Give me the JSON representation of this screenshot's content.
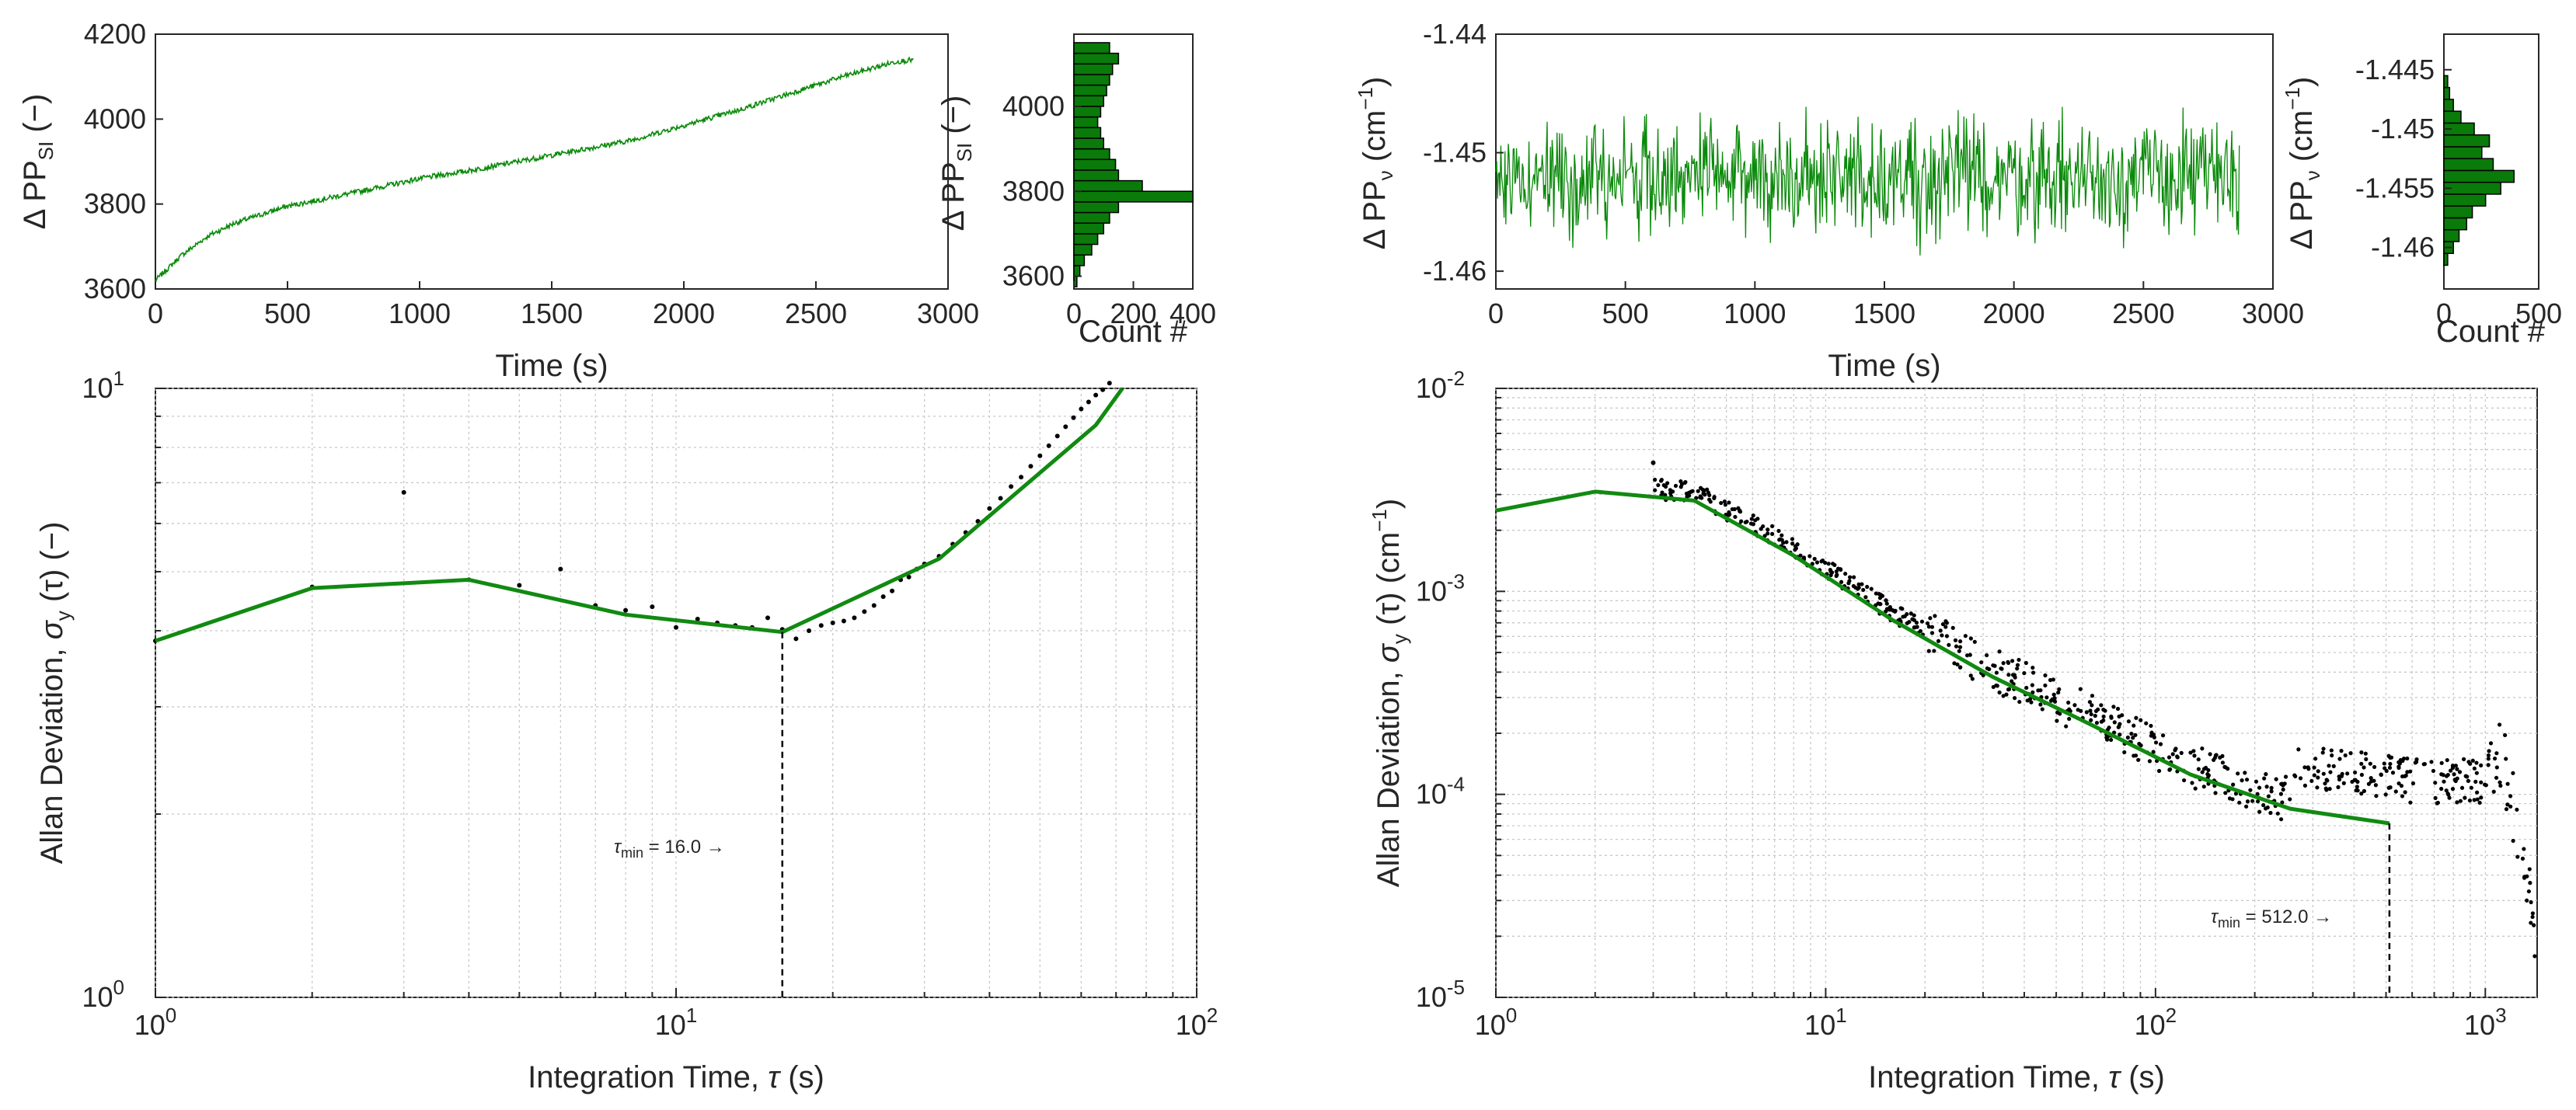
{
  "colors": {
    "series": "#0a8a0a",
    "histogram": "#0a7a0a",
    "avar_line": "#118a11",
    "points": "#000000",
    "grid": "#c8c8c8",
    "axis": "#262626"
  },
  "panels": {
    "ts_si": {
      "xlabel": "Time (s)",
      "ylabel_prefix": "Δ PP",
      "ylabel_sub": "SI",
      "ylabel_suffix": " (−)"
    },
    "hist_si": {
      "xlabel": "Count #",
      "ylabel_prefix": "Δ PP",
      "ylabel_sub": "SI",
      "ylabel_suffix": " (−)"
    },
    "ts_nu": {
      "xlabel": "Time (s)",
      "ylabel_prefix": "Δ PP",
      "ylabel_sub": "ν",
      "ylabel_suffix": " (cm",
      "ylabel_sup": "−1",
      "ylabel_close": ")"
    },
    "hist_nu": {
      "xlabel": "Count #",
      "ylabel_prefix": "Δ PP",
      "ylabel_sub": "ν",
      "ylabel_suffix": " (cm",
      "ylabel_sup": "−1",
      "ylabel_close": ")"
    },
    "adev_si": {
      "xlabel_main": "Integration Time, ",
      "xlabel_sym": "τ",
      "xlabel_unit": " (s)",
      "ylabel_main": "Allan Deviation, ",
      "ylabel_sym": "σ",
      "ylabel_sub": "y",
      "ylabel_tau": " (τ)",
      "ylabel_unit": " (−)",
      "annotation_sym": "τ",
      "annotation_sub": "min",
      "annotation_text": " = 16.0 →"
    },
    "adev_nu": {
      "xlabel_main": "Integration Time, ",
      "xlabel_sym": "τ",
      "xlabel_unit": " (s)",
      "ylabel_main": "Allan Deviation, ",
      "ylabel_sym": "σ",
      "ylabel_sub": "y",
      "ylabel_tau": " (τ)",
      "ylabel_unit": " (cm",
      "ylabel_sup": "−1",
      "ylabel_close": ")",
      "annotation_sym": "τ",
      "annotation_sub": "min",
      "annotation_text": " = 512.0 →"
    }
  },
  "chart_data": [
    {
      "id": "ts_si",
      "type": "line",
      "xlabel": "Time (s)",
      "ylabel": "Δ PP_SI (−)",
      "xlim": [
        0,
        3000
      ],
      "ylim": [
        3600,
        4200
      ],
      "xticks": [
        0,
        500,
        1000,
        1500,
        2000,
        2500,
        3000
      ],
      "yticks": [
        3600,
        3800,
        4000,
        4200
      ],
      "series": [
        {
          "name": "SI",
          "x": [
            0,
            100,
            200,
            300,
            500,
            700,
            1000,
            1200,
            1500,
            1800,
            2000,
            2200,
            2400,
            2600,
            2800,
            2870
          ],
          "values": [
            3620,
            3680,
            3725,
            3755,
            3795,
            3820,
            3860,
            3880,
            3915,
            3950,
            3985,
            4020,
            4060,
            4100,
            4135,
            4140
          ]
        }
      ],
      "noise": 6
    },
    {
      "id": "hist_si",
      "type": "histogram",
      "orientation": "horizontal",
      "xlabel": "Count #",
      "ylabel": "Δ PP_SI (−)",
      "xlim": [
        0,
        400
      ],
      "ylim": [
        3570,
        4170
      ],
      "xticks": [
        0,
        200,
        400
      ],
      "yticks": [
        3600,
        3800,
        4000
      ],
      "bin_start": 3575,
      "bin_width": 25,
      "counts": [
        10,
        20,
        35,
        60,
        80,
        100,
        120,
        150,
        420,
        230,
        150,
        140,
        120,
        100,
        90,
        80,
        90,
        100,
        110,
        120,
        130,
        150,
        120
      ]
    },
    {
      "id": "ts_nu",
      "type": "line",
      "xlabel": "Time (s)",
      "ylabel": "Δ PP_ν (cm^−1)",
      "xlim": [
        0,
        3000
      ],
      "ylim": [
        -1.4615,
        -1.44
      ],
      "xticks": [
        0,
        500,
        1000,
        1500,
        2000,
        2500,
        3000
      ],
      "yticks": [
        -1.46,
        -1.45,
        -1.44
      ],
      "mean": -1.452,
      "spread": 0.0045,
      "x_end": 2870,
      "n_points": 900
    },
    {
      "id": "hist_nu",
      "type": "histogram",
      "orientation": "horizontal",
      "xlabel": "Count #",
      "ylabel": "Δ PP_ν (cm^−1)",
      "xlim": [
        0,
        500
      ],
      "ylim": [
        -1.4635,
        -1.442
      ],
      "xticks": [
        0,
        500
      ],
      "yticks": [
        -1.46,
        -1.455,
        -1.45,
        -1.445
      ],
      "bin_start": -1.4615,
      "bin_width": 0.001,
      "counts": [
        20,
        50,
        80,
        120,
        150,
        220,
        300,
        370,
        260,
        200,
        240,
        160,
        90,
        50,
        30,
        20
      ]
    },
    {
      "id": "adev_si",
      "type": "line",
      "scale": "loglog",
      "xlabel": "Integration Time, τ (s)",
      "ylabel": "Allan Deviation, σ_y (τ) (−)",
      "xlim": [
        1,
        100
      ],
      "ylim": [
        1,
        10
      ],
      "xticks": [
        1,
        10,
        100
      ],
      "yticks": [
        1,
        10
      ],
      "fit_line": {
        "x": [
          1,
          2,
          4,
          8,
          16,
          32,
          64,
          72
        ],
        "values": [
          3.85,
          4.7,
          4.85,
          4.25,
          3.98,
          5.25,
          8.7,
          10
        ]
      },
      "points": {
        "x": [
          1,
          2,
          3,
          4,
          5,
          6,
          7,
          8,
          9,
          10,
          11,
          12,
          13,
          14,
          15,
          16,
          17,
          18,
          19,
          20,
          21,
          22,
          23,
          24,
          25,
          26,
          27,
          28,
          29,
          30,
          32,
          34,
          36,
          38,
          40,
          42,
          44,
          46,
          48,
          50,
          52,
          54,
          56,
          58,
          60,
          62,
          64,
          66,
          68,
          70
        ],
        "values": [
          3.85,
          4.72,
          6.75,
          4.85,
          4.75,
          5.05,
          4.4,
          4.32,
          4.38,
          4.05,
          4.18,
          4.12,
          4.08,
          4.05,
          4.2,
          4.02,
          3.88,
          4.0,
          4.08,
          4.12,
          4.15,
          4.2,
          4.3,
          4.4,
          4.55,
          4.65,
          4.85,
          4.9,
          5.05,
          5.15,
          5.3,
          5.55,
          5.8,
          6.05,
          6.35,
          6.6,
          6.9,
          7.15,
          7.45,
          7.75,
          8.05,
          8.35,
          8.65,
          8.95,
          9.25,
          9.5,
          9.75,
          9.95,
          10.2,
          10.45
        ]
      },
      "tau_min": 16.0,
      "tau_min_value": 3.98
    },
    {
      "id": "adev_nu",
      "type": "line",
      "scale": "loglog",
      "xlabel": "Integration Time, τ (s)",
      "ylabel": "Allan Deviation, σ_y (τ) (cm^−1)",
      "xlim": [
        1,
        1436
      ],
      "ylim": [
        1e-05,
        0.01
      ],
      "xticks": [
        1,
        10,
        100,
        1000
      ],
      "yticks": [
        1e-05,
        0.0001,
        0.001,
        0.01
      ],
      "fit_line": {
        "x": [
          1,
          2,
          4,
          8,
          16,
          32,
          64,
          128,
          256,
          512
        ],
        "values": [
          0.0025,
          0.0031,
          0.0028,
          0.0015,
          0.00072,
          0.00038,
          0.00022,
          0.000125,
          8.5e-05,
          7.2e-05
        ]
      },
      "points_model": {
        "x_min": 3,
        "x_max": 1436,
        "n": 700
      },
      "tau_min": 512.0,
      "tau_min_value": 7.2e-05
    }
  ]
}
